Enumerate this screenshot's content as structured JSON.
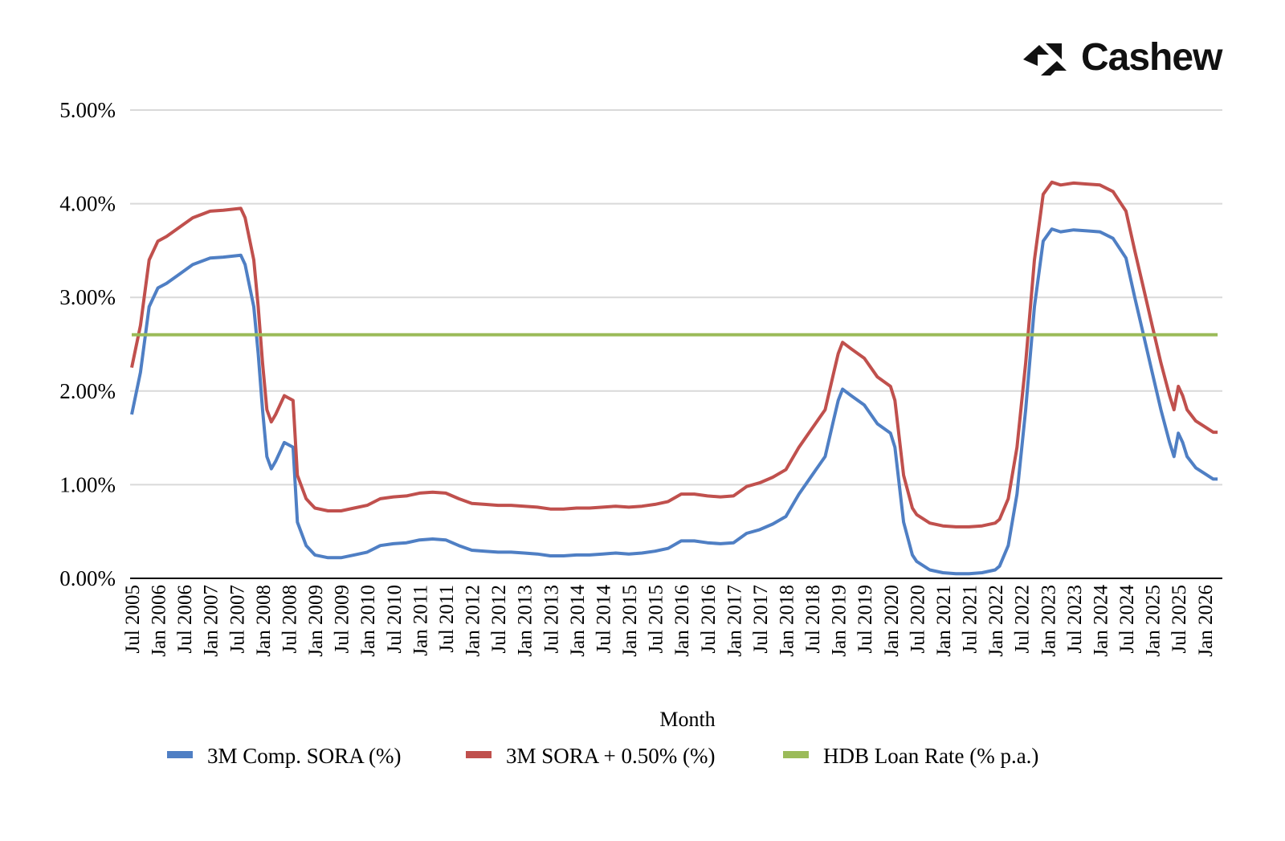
{
  "brand": {
    "name": "Cashew"
  },
  "colors": {
    "sora": "#4f7fc4",
    "sora_plus": "#c0504d",
    "hdb": "#9bbb59",
    "grid": "#d9d9d9",
    "axis": "#000000"
  },
  "chart_data": {
    "type": "line",
    "title": "",
    "xlabel": "Month",
    "ylabel": "",
    "ylim": [
      0,
      5
    ],
    "y_ticks": [
      "0.00%",
      "1.00%",
      "2.00%",
      "3.00%",
      "4.00%",
      "5.00%"
    ],
    "y_tick_values": [
      0,
      1,
      2,
      3,
      4,
      5
    ],
    "x_ticks": [
      "Jul 2005",
      "Jan 2006",
      "Jul 2006",
      "Jan 2007",
      "Jul 2007",
      "Jan 2008",
      "Jul 2008",
      "Jan 2009",
      "Jul 2009",
      "Jan 2010",
      "Jul 2010",
      "Jan 2011",
      "Jul 2011",
      "Jan 2012",
      "Jul 2012",
      "Jan 2013",
      "Jul 2013",
      "Jan 2014",
      "Jul 2014",
      "Jan 2015",
      "Jul 2015",
      "Jan 2016",
      "Jul 2016",
      "Jan 2017",
      "Jul 2017",
      "Jan 2018",
      "Jul 2018",
      "Jan 2019",
      "Jul 2019",
      "Jan 2020",
      "Jul 2020",
      "Jan 2021",
      "Jul 2021",
      "Jan 2022",
      "Jul 2022",
      "Jan 2023",
      "Jul 2023",
      "Jan 2024",
      "Jul 2024",
      "Jan 2025",
      "Jul 2025",
      "Jan 2026"
    ],
    "grid": true,
    "legend_position": "bottom",
    "series": [
      {
        "name": "3M Comp. SORA (%)",
        "color_key": "sora",
        "x": [
          "2005-07",
          "2005-09",
          "2005-11",
          "2006-01",
          "2006-03",
          "2006-06",
          "2006-09",
          "2007-01",
          "2007-04",
          "2007-08",
          "2007-09",
          "2007-11",
          "2007-12",
          "2008-01",
          "2008-02",
          "2008-03",
          "2008-04",
          "2008-06",
          "2008-08",
          "2008-09",
          "2008-11",
          "2008-12",
          "2009-01",
          "2009-04",
          "2009-07",
          "2009-10",
          "2010-01",
          "2010-04",
          "2010-07",
          "2010-10",
          "2011-01",
          "2011-04",
          "2011-07",
          "2011-10",
          "2012-01",
          "2012-04",
          "2012-07",
          "2012-10",
          "2013-01",
          "2013-04",
          "2013-07",
          "2013-10",
          "2014-01",
          "2014-04",
          "2014-07",
          "2014-10",
          "2015-01",
          "2015-04",
          "2015-07",
          "2015-10",
          "2016-01",
          "2016-04",
          "2016-07",
          "2016-10",
          "2017-01",
          "2017-04",
          "2017-07",
          "2017-10",
          "2018-01",
          "2018-04",
          "2018-07",
          "2018-10",
          "2018-12",
          "2019-01",
          "2019-02",
          "2019-04",
          "2019-07",
          "2019-10",
          "2020-01",
          "2020-02",
          "2020-04",
          "2020-06",
          "2020-07",
          "2020-10",
          "2021-01",
          "2021-04",
          "2021-07",
          "2021-10",
          "2022-01",
          "2022-02",
          "2022-04",
          "2022-06",
          "2022-08",
          "2022-10",
          "2022-12",
          "2023-02",
          "2023-04",
          "2023-07",
          "2023-10",
          "2024-01",
          "2024-04",
          "2024-07",
          "2024-09",
          "2024-11",
          "2025-01",
          "2025-03",
          "2025-05",
          "2025-06",
          "2025-07",
          "2025-08",
          "2025-09",
          "2025-11",
          "2026-01",
          "2026-03",
          "2026-04"
        ],
        "y": [
          1.75,
          2.2,
          2.9,
          3.1,
          3.15,
          3.25,
          3.35,
          3.42,
          3.43,
          3.45,
          3.35,
          2.9,
          2.4,
          1.8,
          1.3,
          1.17,
          1.25,
          1.45,
          1.4,
          0.6,
          0.35,
          0.3,
          0.25,
          0.22,
          0.22,
          0.25,
          0.28,
          0.35,
          0.37,
          0.38,
          0.41,
          0.42,
          0.41,
          0.35,
          0.3,
          0.29,
          0.28,
          0.28,
          0.27,
          0.26,
          0.24,
          0.24,
          0.25,
          0.25,
          0.26,
          0.27,
          0.26,
          0.27,
          0.29,
          0.32,
          0.4,
          0.4,
          0.38,
          0.37,
          0.38,
          0.48,
          0.52,
          0.58,
          0.66,
          0.9,
          1.1,
          1.3,
          1.7,
          1.9,
          2.02,
          1.95,
          1.85,
          1.65,
          1.55,
          1.4,
          0.6,
          0.25,
          0.18,
          0.09,
          0.06,
          0.05,
          0.05,
          0.06,
          0.09,
          0.13,
          0.35,
          0.9,
          1.8,
          2.9,
          3.6,
          3.73,
          3.7,
          3.72,
          3.71,
          3.7,
          3.63,
          3.42,
          3.0,
          2.6,
          2.2,
          1.8,
          1.45,
          1.3,
          1.55,
          1.45,
          1.3,
          1.18,
          1.12,
          1.06,
          1.06
        ]
      },
      {
        "name": "3M SORA + 0.50% (%)",
        "color_key": "sora_plus",
        "x": [
          "2005-07",
          "2005-09",
          "2005-11",
          "2006-01",
          "2006-03",
          "2006-06",
          "2006-09",
          "2007-01",
          "2007-04",
          "2007-08",
          "2007-09",
          "2007-11",
          "2007-12",
          "2008-01",
          "2008-02",
          "2008-03",
          "2008-04",
          "2008-06",
          "2008-08",
          "2008-09",
          "2008-11",
          "2008-12",
          "2009-01",
          "2009-04",
          "2009-07",
          "2009-10",
          "2010-01",
          "2010-04",
          "2010-07",
          "2010-10",
          "2011-01",
          "2011-04",
          "2011-07",
          "2011-10",
          "2012-01",
          "2012-04",
          "2012-07",
          "2012-10",
          "2013-01",
          "2013-04",
          "2013-07",
          "2013-10",
          "2014-01",
          "2014-04",
          "2014-07",
          "2014-10",
          "2015-01",
          "2015-04",
          "2015-07",
          "2015-10",
          "2016-01",
          "2016-04",
          "2016-07",
          "2016-10",
          "2017-01",
          "2017-04",
          "2017-07",
          "2017-10",
          "2018-01",
          "2018-04",
          "2018-07",
          "2018-10",
          "2018-12",
          "2019-01",
          "2019-02",
          "2019-04",
          "2019-07",
          "2019-10",
          "2020-01",
          "2020-02",
          "2020-04",
          "2020-06",
          "2020-07",
          "2020-10",
          "2021-01",
          "2021-04",
          "2021-07",
          "2021-10",
          "2022-01",
          "2022-02",
          "2022-04",
          "2022-06",
          "2022-08",
          "2022-10",
          "2022-12",
          "2023-02",
          "2023-04",
          "2023-07",
          "2023-10",
          "2024-01",
          "2024-04",
          "2024-07",
          "2024-09",
          "2024-11",
          "2025-01",
          "2025-03",
          "2025-05",
          "2025-06",
          "2025-07",
          "2025-08",
          "2025-09",
          "2025-11",
          "2026-01",
          "2026-03",
          "2026-04"
        ],
        "y": [
          2.25,
          2.7,
          3.4,
          3.6,
          3.65,
          3.75,
          3.85,
          3.92,
          3.93,
          3.95,
          3.85,
          3.4,
          2.9,
          2.3,
          1.8,
          1.67,
          1.75,
          1.95,
          1.9,
          1.1,
          0.85,
          0.8,
          0.75,
          0.72,
          0.72,
          0.75,
          0.78,
          0.85,
          0.87,
          0.88,
          0.91,
          0.92,
          0.91,
          0.85,
          0.8,
          0.79,
          0.78,
          0.78,
          0.77,
          0.76,
          0.74,
          0.74,
          0.75,
          0.75,
          0.76,
          0.77,
          0.76,
          0.77,
          0.79,
          0.82,
          0.9,
          0.9,
          0.88,
          0.87,
          0.88,
          0.98,
          1.02,
          1.08,
          1.16,
          1.4,
          1.6,
          1.8,
          2.2,
          2.4,
          2.52,
          2.45,
          2.35,
          2.15,
          2.05,
          1.9,
          1.1,
          0.75,
          0.68,
          0.59,
          0.56,
          0.55,
          0.55,
          0.56,
          0.59,
          0.63,
          0.85,
          1.4,
          2.3,
          3.4,
          4.1,
          4.23,
          4.2,
          4.22,
          4.21,
          4.2,
          4.13,
          3.92,
          3.5,
          3.1,
          2.7,
          2.3,
          1.95,
          1.8,
          2.05,
          1.95,
          1.8,
          1.68,
          1.62,
          1.56,
          1.56
        ]
      },
      {
        "name": "HDB Loan Rate (% p.a.)",
        "color_key": "hdb",
        "x": [
          "2005-07",
          "2026-04"
        ],
        "y": [
          2.6,
          2.6
        ]
      }
    ]
  }
}
